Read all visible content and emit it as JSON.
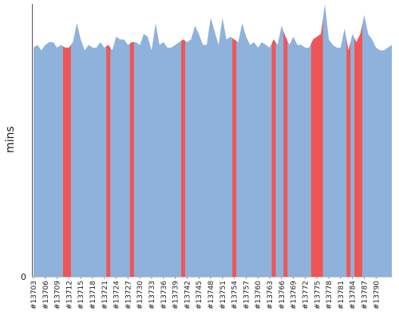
{
  "chart_data": {
    "type": "area",
    "title": "",
    "xlabel": "",
    "ylabel": "mins",
    "y_ticks": [
      "0"
    ],
    "ylim": [
      0,
      100
    ],
    "grid": false,
    "legend": "none",
    "colors": {
      "area": "#8eb2db",
      "highlight": "#f05555",
      "axis": "#555555"
    },
    "x_first": 13703,
    "x_tick_labels": [
      "#13703",
      "#13706",
      "#13709",
      "#13712",
      "#13715",
      "#13718",
      "#13721",
      "#13724",
      "#13727",
      "#13730",
      "#13733",
      "#13736",
      "#13739",
      "#13742",
      "#13745",
      "#13748",
      "#13751",
      "#13754",
      "#13757",
      "#13760",
      "#13763",
      "#13766",
      "#13769",
      "#13772",
      "#13775",
      "#13778",
      "#13781",
      "#13784",
      "#13787",
      "#13790"
    ],
    "values": [
      84,
      85,
      83,
      85,
      86,
      86,
      84,
      85,
      84,
      84,
      86,
      93,
      87,
      83,
      85,
      84,
      84,
      86,
      84,
      85,
      83,
      88,
      87,
      87,
      85,
      86,
      86,
      85,
      89,
      88,
      83,
      93,
      85,
      86,
      84,
      84,
      85,
      86,
      87,
      86,
      87,
      92,
      89,
      85,
      85,
      95,
      90,
      85,
      95,
      87,
      88,
      87,
      86,
      93,
      88,
      85,
      86,
      84,
      86,
      85,
      84,
      87,
      85,
      92,
      88,
      85,
      88,
      85,
      85,
      84,
      84,
      87,
      88,
      89,
      100,
      87,
      85,
      84,
      84,
      91,
      83,
      89,
      86,
      89,
      96,
      89,
      87,
      84,
      83,
      83,
      84,
      85
    ],
    "highlighted": [
      {
        "from": "#13711",
        "to": "#13712"
      },
      {
        "from": "#13722",
        "to": "#13722"
      },
      {
        "from": "#13728",
        "to": "#13728"
      },
      {
        "from": "#13741",
        "to": "#13741"
      },
      {
        "from": "#13754",
        "to": "#13754"
      },
      {
        "from": "#13764",
        "to": "#13764"
      },
      {
        "from": "#13767",
        "to": "#13767"
      },
      {
        "from": "#13774",
        "to": "#13776"
      },
      {
        "from": "#13783",
        "to": "#13783"
      },
      {
        "from": "#13785",
        "to": "#13786"
      }
    ]
  }
}
